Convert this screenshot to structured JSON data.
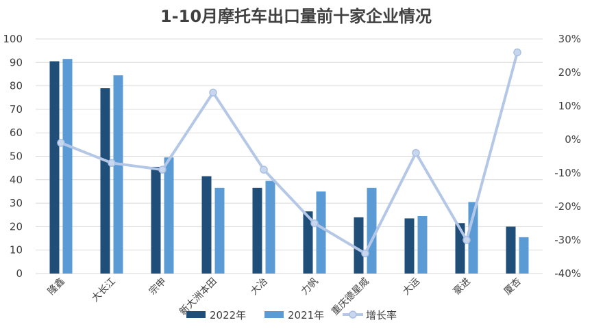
{
  "chart_data": {
    "type": "bar",
    "title": "1-10月摩托车出口量前十家企业情况",
    "categories": [
      "隆鑫",
      "大长江",
      "宗申",
      "新大洲本田",
      "大冶",
      "力帆",
      "重庆德星威",
      "大运",
      "豪进",
      "厦杏"
    ],
    "series": [
      {
        "name": "2022年",
        "kind": "bar",
        "axis": "left",
        "color": "#1f4e79",
        "values": [
          90.5,
          79,
          45.5,
          41.5,
          36.5,
          26.5,
          24,
          23.5,
          21.5,
          20
        ]
      },
      {
        "name": "2021年",
        "kind": "bar",
        "axis": "left",
        "color": "#5b9bd5",
        "values": [
          91.5,
          84.5,
          49.5,
          36.5,
          39.5,
          35,
          36.5,
          24.5,
          30.5,
          15.5
        ]
      },
      {
        "name": "增长率",
        "kind": "line",
        "axis": "right",
        "color": "#b4c7e7",
        "values": [
          -1,
          -7,
          -9,
          14,
          -9,
          -25,
          -34,
          -4,
          -30,
          26
        ]
      }
    ],
    "yleft": {
      "min": 0,
      "max": 100,
      "step": 10,
      "ticks": [
        "0",
        "10",
        "20",
        "30",
        "40",
        "50",
        "60",
        "70",
        "80",
        "90",
        "100"
      ]
    },
    "yright": {
      "min": -40,
      "max": 30,
      "step": 10,
      "ticks": [
        "-40%",
        "-30%",
        "-20%",
        "-10%",
        "0%",
        "10%",
        "20%",
        "30%"
      ]
    },
    "grid": true,
    "legend_position": "bottom"
  }
}
